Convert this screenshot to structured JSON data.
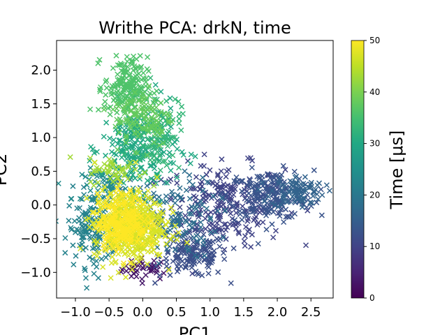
{
  "chart_data": {
    "type": "scatter",
    "title": "Writhe PCA: drkN, time",
    "xlabel": "PC1",
    "ylabel": "PC2",
    "xlim": [
      -1.28,
      2.83
    ],
    "ylim": [
      -1.38,
      2.44
    ],
    "xticks": [
      -1.0,
      -0.5,
      0.0,
      0.5,
      1.0,
      1.5,
      2.0,
      2.5
    ],
    "xtick_labels": [
      "−1.0",
      "−0.5",
      "0.0",
      "0.5",
      "1.0",
      "1.5",
      "2.0",
      "2.5"
    ],
    "yticks": [
      -1.0,
      -0.5,
      0.0,
      0.5,
      1.0,
      1.5,
      2.0
    ],
    "ytick_labels": [
      "−1.0",
      "−0.5",
      "0.0",
      "0.5",
      "1.0",
      "1.5",
      "2.0"
    ],
    "marker": "x",
    "grid": false,
    "colorbar": {
      "label": "Time [μs]",
      "range": [
        0,
        50
      ],
      "ticks": [
        0,
        10,
        20,
        30,
        40,
        50
      ],
      "tick_labels": [
        "0",
        "10",
        "20",
        "30",
        "40",
        "50"
      ],
      "colormap": "viridis"
    },
    "clusters": [
      {
        "time": 3,
        "cx": 0.05,
        "cy": -0.95,
        "sx": 0.18,
        "sy": 0.08,
        "n": 40
      },
      {
        "time": 10,
        "cx": 1.2,
        "cy": 0.0,
        "sx": 0.45,
        "sy": 0.3,
        "n": 260
      },
      {
        "time": 12,
        "cx": 0.75,
        "cy": -0.75,
        "sx": 0.25,
        "sy": 0.16,
        "n": 160
      },
      {
        "time": 13,
        "cx": 1.9,
        "cy": 0.15,
        "sx": 0.32,
        "sy": 0.18,
        "n": 200
      },
      {
        "time": 16,
        "cx": 2.3,
        "cy": 0.2,
        "sx": 0.2,
        "sy": 0.12,
        "n": 90
      },
      {
        "time": 18,
        "cx": 0.4,
        "cy": -0.2,
        "sx": 0.35,
        "sy": 0.3,
        "n": 140
      },
      {
        "time": 22,
        "cx": -0.75,
        "cy": -0.35,
        "sx": 0.18,
        "sy": 0.28,
        "n": 150
      },
      {
        "time": 24,
        "cx": -0.5,
        "cy": 0.3,
        "sx": 0.2,
        "sy": 0.12,
        "n": 60
      },
      {
        "time": 30,
        "cx": -0.05,
        "cy": 0.85,
        "sx": 0.28,
        "sy": 0.32,
        "n": 260
      },
      {
        "time": 33,
        "cx": 0.2,
        "cy": 1.1,
        "sx": 0.18,
        "sy": 0.3,
        "n": 90
      },
      {
        "time": 36,
        "cx": -0.25,
        "cy": 1.75,
        "sx": 0.16,
        "sy": 0.22,
        "n": 190
      },
      {
        "time": 38,
        "cx": 0.0,
        "cy": 1.3,
        "sx": 0.22,
        "sy": 0.22,
        "n": 120
      },
      {
        "time": 43,
        "cx": -0.4,
        "cy": 0.5,
        "sx": 0.2,
        "sy": 0.1,
        "n": 50
      },
      {
        "time": 47,
        "cx": -0.2,
        "cy": -0.3,
        "sx": 0.26,
        "sy": 0.26,
        "n": 520
      },
      {
        "time": 50,
        "cx": -0.3,
        "cy": -0.25,
        "sx": 0.18,
        "sy": 0.2,
        "n": 240
      }
    ]
  }
}
